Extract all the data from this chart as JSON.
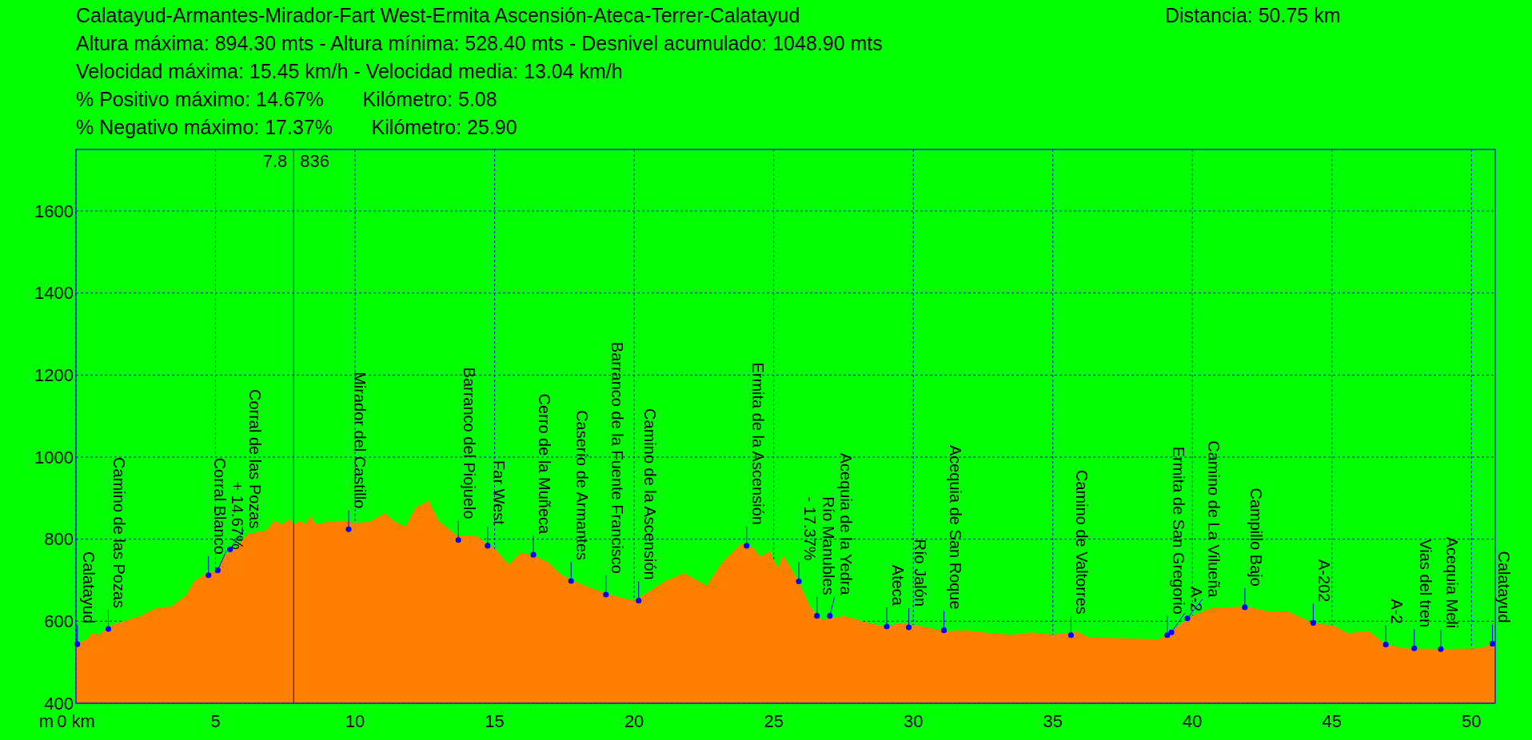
{
  "chart_data": {
    "type": "area",
    "title": "Calatayud-Armantes-Mirador-Fart West-Ermita Ascensión-Ateca-Terrer-Calatayud",
    "subtitle": "Distancia: 50.75 km",
    "ylabel": "m",
    "xlim": [
      0,
      50.85
    ],
    "ylim": [
      400,
      1750
    ],
    "xticks": [
      {
        "value": 0,
        "label": "0 km"
      },
      5,
      10,
      15,
      20,
      25,
      30,
      35,
      40,
      45,
      50
    ],
    "yticks": [
      400,
      600,
      800,
      1000,
      1200,
      1400,
      1600
    ],
    "grid": true,
    "series": [
      {
        "color": "#ff8000",
        "x": [
          0,
          0.41,
          0.55,
          0.82,
          1.16,
          1.37,
          1.91,
          2.32,
          2.87,
          3.42,
          3.96,
          4.23,
          4.64,
          5.05,
          5.33,
          5.74,
          6.15,
          6.83,
          7.1,
          7.38,
          7.65,
          7.8,
          8.06,
          8.2,
          8.4,
          8.61,
          9.02,
          9.56,
          9.97,
          10.52,
          11.07,
          11.48,
          11.82,
          12.16,
          12.64,
          12.98,
          13.66,
          14.34,
          15.03,
          15.51,
          15.92,
          16.39,
          16.94,
          17.35,
          17.74,
          18.36,
          18.97,
          19.45,
          20.0,
          20.55,
          21.1,
          21.78,
          22.6,
          23.15,
          23.84,
          24.25,
          24.52,
          24.86,
          25.14,
          25.34,
          25.89,
          26.3,
          26.71,
          27.53,
          28.22,
          29.04,
          29.45,
          30.14,
          31.1,
          31.92,
          32.74,
          33.56,
          34.25,
          35.0,
          35.86,
          36.33,
          37.83,
          38.78,
          39.12,
          39.86,
          40.68,
          41.9,
          42.72,
          43.4,
          44.35,
          45.03,
          45.57,
          46.32,
          46.93,
          47.61,
          48.97,
          50.33,
          50.85
        ],
        "values": [
          544,
          557,
          571,
          567,
          585,
          593,
          604,
          613,
          632,
          636,
          664,
          697,
          715,
          724,
          761,
          780,
          812,
          822,
          845,
          836,
          849,
          836,
          845,
          836,
          856,
          836,
          842,
          845,
          840,
          842,
          863,
          840,
          831,
          877,
          894,
          845,
          808,
          808,
          775,
          738,
          766,
          761,
          743,
          715,
          701,
          683,
          669,
          659,
          650,
          673,
          697,
          717,
          687,
          743,
          789,
          780,
          757,
          771,
          729,
          761,
          697,
          636,
          604,
          613,
          599,
          585,
          595,
          590,
          576,
          578,
          571,
          567,
          573,
          567,
          574,
          560,
          558,
          556,
          567,
          609,
          632,
          636,
          624,
          624,
          595,
          590,
          571,
          576,
          544,
          534,
          532,
          534,
          548
        ]
      },
      {
        "type": "scatter",
        "color": "#0000ff",
        "marker": "circle",
        "x": [
          0.05,
          1.16,
          4.75,
          5.08,
          5.52,
          9.77,
          13.7,
          14.75,
          16.39,
          17.74,
          18.99,
          20.16,
          24.03,
          25.9,
          26.55,
          27.01,
          29.05,
          29.84,
          31.1,
          35.65,
          39.1,
          39.25,
          39.82,
          41.88,
          44.33,
          46.93,
          47.95,
          48.9,
          50.75
        ],
        "values": [
          544,
          581,
          712,
          724,
          775,
          824,
          798,
          784,
          762,
          698,
          665,
          650,
          784,
          697,
          613,
          613,
          587,
          585,
          578,
          566,
          566,
          573,
          607,
          634,
          596,
          543,
          534,
          532,
          545
        ]
      }
    ],
    "ref_lines": [
      {
        "axis": "x",
        "value": 7.8,
        "label": "7.8",
        "color": "#0000ff"
      }
    ],
    "annotations": [
      "Altura máxima: 894.30 mts - Altura mínima: 528.40 mts - Desnivel acumulado: 1048.90 mts",
      "Velocidad máxima: 15.45 km/h - Velocidad media: 13.04 km/h",
      "% Positivo máximo: 14.67%       Kilómetro: 5.08",
      "% Negativo máximo: 17.37%       Kilómetro: 25.90",
      "836",
      {
        "text": "Calatayud",
        "x": 0.05,
        "y": 544
      },
      {
        "text": "Camino de las Pozas",
        "x": 1.16,
        "y": 581
      },
      {
        "text": "Corral Blanco",
        "x": 4.75,
        "y": 712
      },
      {
        "text": "+ 14.67%",
        "x": 5.08,
        "y": 724
      },
      {
        "text": "Corral de las Pozas",
        "x": 5.52,
        "y": 775
      },
      {
        "text": "Mirador del Castillo",
        "x": 9.77,
        "y": 824
      },
      {
        "text": "Barranco del Piojuelo",
        "x": 13.7,
        "y": 798
      },
      {
        "text": "Far West",
        "x": 14.75,
        "y": 784
      },
      {
        "text": "Cerro de la Muñeca",
        "x": 16.39,
        "y": 762
      },
      {
        "text": "Caserío de Armantes",
        "x": 17.74,
        "y": 698
      },
      {
        "text": "Barranco de la Fuente Francisco",
        "x": 18.99,
        "y": 665
      },
      {
        "text": "Camino de la Ascensión",
        "x": 20.16,
        "y": 650
      },
      {
        "text": "Ermita de la Ascensión",
        "x": 24.03,
        "y": 784
      },
      {
        "text": "- 17.37%",
        "x": 25.9,
        "y": 697
      },
      {
        "text": "Río Manubles",
        "x": 26.55,
        "y": 613
      },
      {
        "text": "Acequia de la Yedra",
        "x": 27.01,
        "y": 613
      },
      {
        "text": "Ateca",
        "x": 29.05,
        "y": 587
      },
      {
        "text": "Río Jalón",
        "x": 29.84,
        "y": 585
      },
      {
        "text": "Acequia de San Roque",
        "x": 31.1,
        "y": 578
      },
      {
        "text": "Camino de Valtorres",
        "x": 35.65,
        "y": 566
      },
      {
        "text": "Ermita de San Gregorio",
        "x": 39.1,
        "y": 566
      },
      {
        "text": "A-2",
        "x": 39.25,
        "y": 573
      },
      {
        "text": "Camino de La Vilueña",
        "x": 39.82,
        "y": 607
      },
      {
        "text": "Campillo Bajo",
        "x": 41.88,
        "y": 634
      },
      {
        "text": "A-202",
        "x": 44.33,
        "y": 596
      },
      {
        "text": "A-2",
        "x": 46.93,
        "y": 543
      },
      {
        "text": "Vias del tren",
        "x": 47.95,
        "y": 534
      },
      {
        "text": "Acequia Meli",
        "x": 48.9,
        "y": 532
      },
      {
        "text": "Calatayud",
        "x": 50.75,
        "y": 545
      }
    ]
  }
}
